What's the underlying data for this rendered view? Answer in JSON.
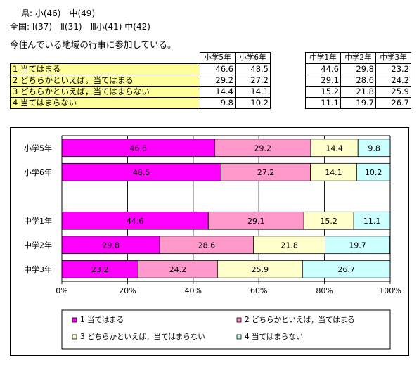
{
  "header": {
    "line1": "県: 小(46)　中(49)",
    "line2": "全国: Ⅰ(37)　Ⅱ(31)　Ⅲ小(41) 中(42)",
    "question": "今住んでいる地域の行事に参加している。"
  },
  "table": {
    "columns_elem": [
      "小学5年",
      "小学6年"
    ],
    "columns_mid": [
      "中学1年",
      "中学2年",
      "中学3年"
    ],
    "rows": [
      {
        "label": "1 当てはまる",
        "elem": [
          "46.6",
          "48.5"
        ],
        "mid": [
          "44.6",
          "29.8",
          "23.2"
        ]
      },
      {
        "label": "2 どちらかといえば，当てはまる",
        "elem": [
          "29.2",
          "27.2"
        ],
        "mid": [
          "29.1",
          "28.6",
          "24.2"
        ]
      },
      {
        "label": "3 どちらかといえば，当てはまらない",
        "elem": [
          "14.4",
          "14.1"
        ],
        "mid": [
          "15.2",
          "21.8",
          "25.9"
        ]
      },
      {
        "label": "4 当てはまらない",
        "elem": [
          "9.8",
          "10.2"
        ],
        "mid": [
          "11.1",
          "19.7",
          "26.7"
        ]
      }
    ]
  },
  "chart_data": {
    "type": "bar",
    "orientation": "horizontal",
    "stacked": true,
    "categories": [
      "小学5年",
      "小学6年",
      "",
      "中学1年",
      "中学2年",
      "中学3年"
    ],
    "series": [
      {
        "name": "1 当てはまる",
        "color": "#ff00ff",
        "values": [
          46.6,
          48.5,
          null,
          44.6,
          29.8,
          23.2
        ]
      },
      {
        "name": "2 どちらかといえば，当てはまる",
        "color": "#ff99cc",
        "values": [
          29.2,
          27.2,
          null,
          29.1,
          28.6,
          24.2
        ]
      },
      {
        "name": "3 どちらかといえば，当てはまらない",
        "color": "#ffffcc",
        "values": [
          14.4,
          14.1,
          null,
          15.2,
          21.8,
          25.9
        ]
      },
      {
        "name": "4 当てはまらない",
        "color": "#ccffff",
        "values": [
          9.8,
          10.2,
          null,
          11.1,
          19.7,
          26.7
        ]
      }
    ],
    "xticks": [
      "0%",
      "20%",
      "40%",
      "60%",
      "80%",
      "100%"
    ],
    "xlim": [
      0,
      100
    ],
    "grid": true,
    "legend_position": "bottom"
  }
}
